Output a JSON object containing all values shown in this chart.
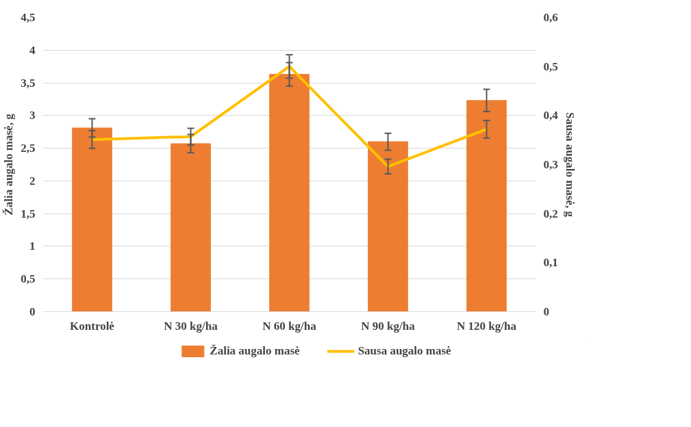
{
  "chart_data": {
    "type": "bar",
    "categories": [
      "Kontrolė",
      "N 30 kg/ha",
      "N 60 kg/ha",
      "N 90 kg/ha",
      "N 120 kg/ha"
    ],
    "ylabel": "Žalia augalo masė, g",
    "y2label": "Sausa augalo masė, g",
    "ylim": [
      0,
      4.5
    ],
    "yticks": [
      0,
      {
        "value": 0.5,
        "label": "0,5"
      },
      1,
      {
        "value": 1.5,
        "label": "1,5"
      },
      2,
      {
        "value": 2.5,
        "label": "2,5"
      },
      3,
      {
        "value": 3.5,
        "label": "3,5"
      },
      4,
      {
        "value": 4.5,
        "label": "4,5"
      }
    ],
    "y2lim": [
      0,
      0.6
    ],
    "y2ticks": [
      0,
      {
        "value": 0.1,
        "label": "0,1"
      },
      {
        "value": 0.2,
        "label": "0,2"
      },
      {
        "value": 0.3,
        "label": "0,3"
      },
      {
        "value": 0.4,
        "label": "0,4"
      },
      {
        "value": 0.5,
        "label": "0,5"
      },
      {
        "value": 0.6,
        "label": "0,6"
      }
    ],
    "series": [
      {
        "name": "Žalia augalo masė",
        "color": "#ed7d31",
        "values": [
          2.81,
          2.57,
          3.63,
          2.6,
          3.23
        ],
        "errors": [
          0.14,
          0.14,
          0.18,
          0.13,
          0.17
        ]
      },
      {
        "name": "Sausa augalo masė",
        "type": "line",
        "axis": "y2",
        "color": "#ffc000",
        "values": [
          0.351,
          0.357,
          0.5,
          0.296,
          0.372
        ],
        "errors": [
          0.018,
          0.017,
          0.024,
          0.015,
          0.018
        ]
      }
    ],
    "grid": "y",
    "legend": "bottom"
  }
}
